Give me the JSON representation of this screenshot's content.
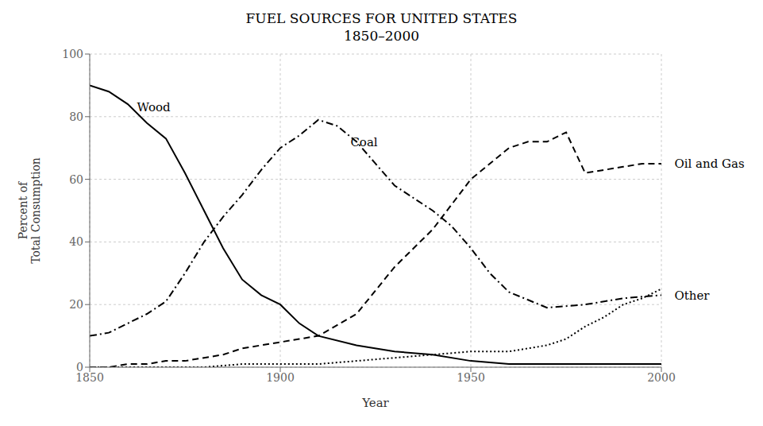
{
  "chart_data": {
    "type": "line",
    "title": "FUEL SOURCES FOR UNITED STATES",
    "subtitle": "1850–2000",
    "x_label": "Year",
    "y_label": "Percent of\nTotal Consumption",
    "xlim": [
      1850,
      2000
    ],
    "ylim": [
      0,
      100
    ],
    "xticks": [
      1850,
      1900,
      1950,
      2000
    ],
    "yticks": [
      0,
      20,
      40,
      60,
      80,
      100
    ],
    "grid": true,
    "series": [
      {
        "name": "Wood",
        "color": "#000000",
        "line_style": "solid",
        "x": [
          1850,
          1855,
          1860,
          1865,
          1870,
          1875,
          1880,
          1885,
          1890,
          1895,
          1900,
          1905,
          1910,
          1920,
          1930,
          1940,
          1950,
          1960,
          1970,
          1980,
          1990,
          2000
        ],
        "values": [
          90,
          88,
          84,
          78,
          73,
          62,
          50,
          38,
          28,
          23,
          20,
          14,
          10,
          7,
          5,
          4,
          2,
          1,
          1,
          1,
          1,
          1
        ]
      },
      {
        "name": "Coal",
        "color": "#000000",
        "line_style": "dashdot",
        "x": [
          1850,
          1855,
          1860,
          1865,
          1870,
          1875,
          1880,
          1885,
          1890,
          1895,
          1900,
          1905,
          1910,
          1915,
          1920,
          1925,
          1930,
          1935,
          1940,
          1945,
          1950,
          1955,
          1960,
          1970,
          1980,
          1990,
          2000
        ],
        "values": [
          10,
          11,
          14,
          17,
          21,
          30,
          40,
          48,
          55,
          63,
          70,
          74,
          79,
          77,
          72,
          65,
          58,
          54,
          50,
          45,
          38,
          30,
          24,
          19,
          20,
          22,
          23
        ]
      },
      {
        "name": "Oil and Gas",
        "color": "#000000",
        "line_style": "dashed",
        "x": [
          1850,
          1855,
          1860,
          1865,
          1870,
          1875,
          1880,
          1885,
          1890,
          1895,
          1900,
          1905,
          1910,
          1920,
          1930,
          1940,
          1950,
          1960,
          1965,
          1970,
          1975,
          1980,
          1985,
          1990,
          1995,
          2000
        ],
        "values": [
          0,
          0,
          1,
          1,
          2,
          2,
          3,
          4,
          6,
          7,
          8,
          9,
          10,
          17,
          32,
          44,
          60,
          70,
          72,
          72,
          75,
          62,
          63,
          64,
          65,
          65
        ]
      },
      {
        "name": "Other",
        "color": "#000000",
        "line_style": "dotted",
        "x": [
          1850,
          1860,
          1870,
          1880,
          1890,
          1900,
          1910,
          1920,
          1930,
          1940,
          1950,
          1960,
          1970,
          1975,
          1980,
          1985,
          1990,
          1995,
          2000
        ],
        "values": [
          0,
          0,
          0,
          0,
          1,
          1,
          1,
          2,
          3,
          4,
          5,
          5,
          7,
          9,
          13,
          16,
          20,
          22,
          25
        ]
      }
    ],
    "annotations": [
      {
        "text": "Wood",
        "x": 1862,
        "y": 83
      },
      {
        "text": "Coal",
        "x": 1918,
        "y": 72
      },
      {
        "text": "Oil and Gas",
        "x": 2003,
        "y": 65
      },
      {
        "text": "Other",
        "x": 2003,
        "y": 23
      }
    ]
  }
}
